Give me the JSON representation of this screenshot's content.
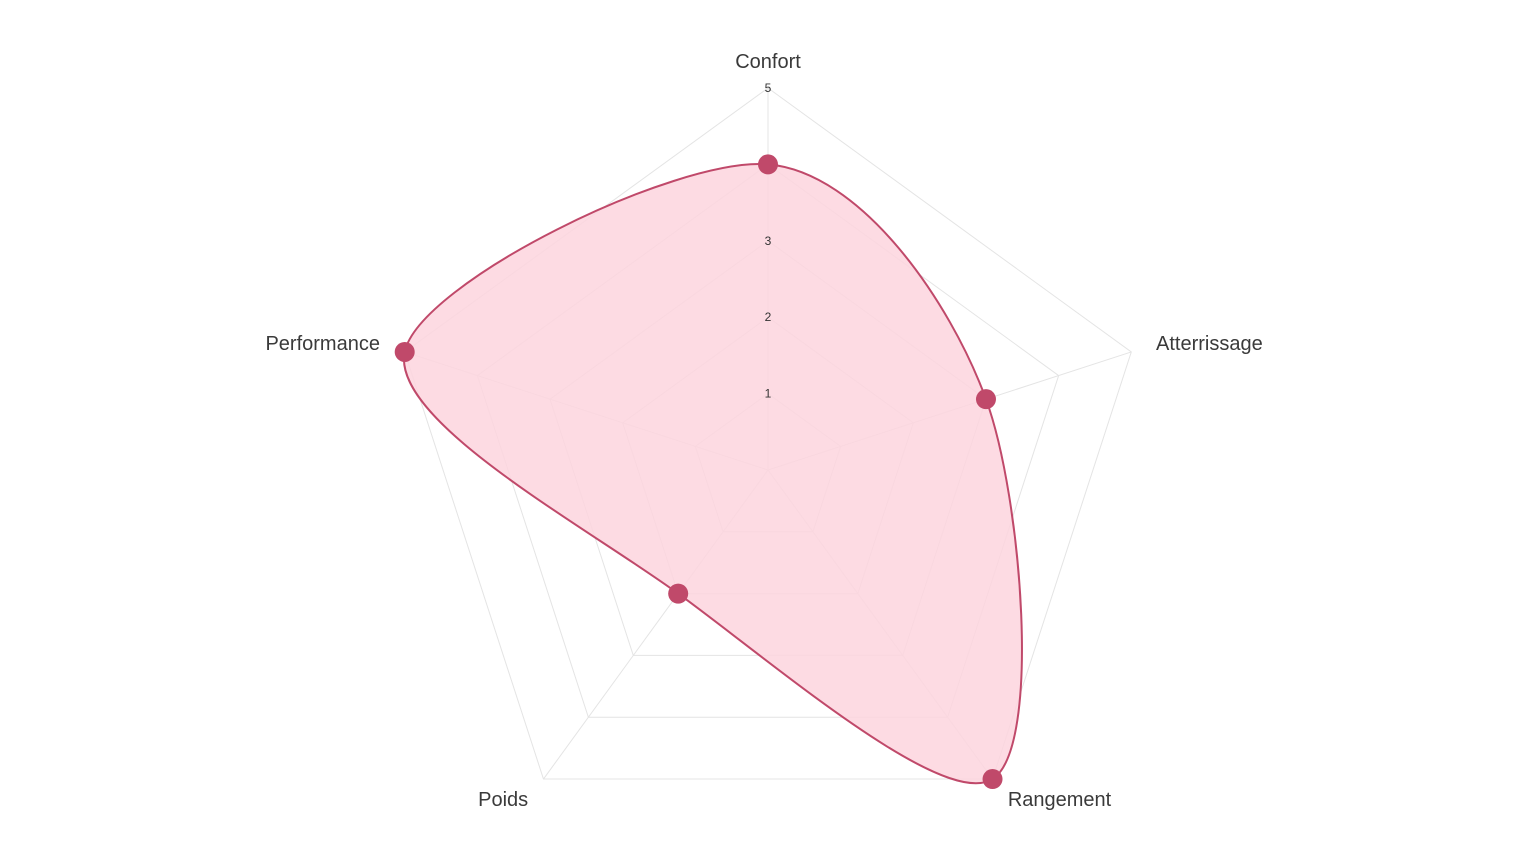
{
  "chart_data": {
    "type": "radar",
    "axes": [
      "Confort",
      "Atterrissage",
      "Rangement",
      "Poids",
      "Performance"
    ],
    "series": [
      {
        "values": [
          4,
          3,
          5,
          2,
          5
        ],
        "stroke_color": "#c0496a",
        "fill_color": "#fdd5de",
        "point_color": "#c0496a"
      }
    ],
    "rlim": [
      0,
      5
    ],
    "ticks": [
      {
        "value": 1,
        "label": "1"
      },
      {
        "value": 2,
        "label": "2"
      },
      {
        "value": 3,
        "label": "3"
      },
      {
        "value": 5,
        "label": "5"
      }
    ],
    "gridlines": [
      1,
      2,
      3,
      4,
      5
    ],
    "grid_color": "#e4e4e4",
    "legend": "none"
  }
}
